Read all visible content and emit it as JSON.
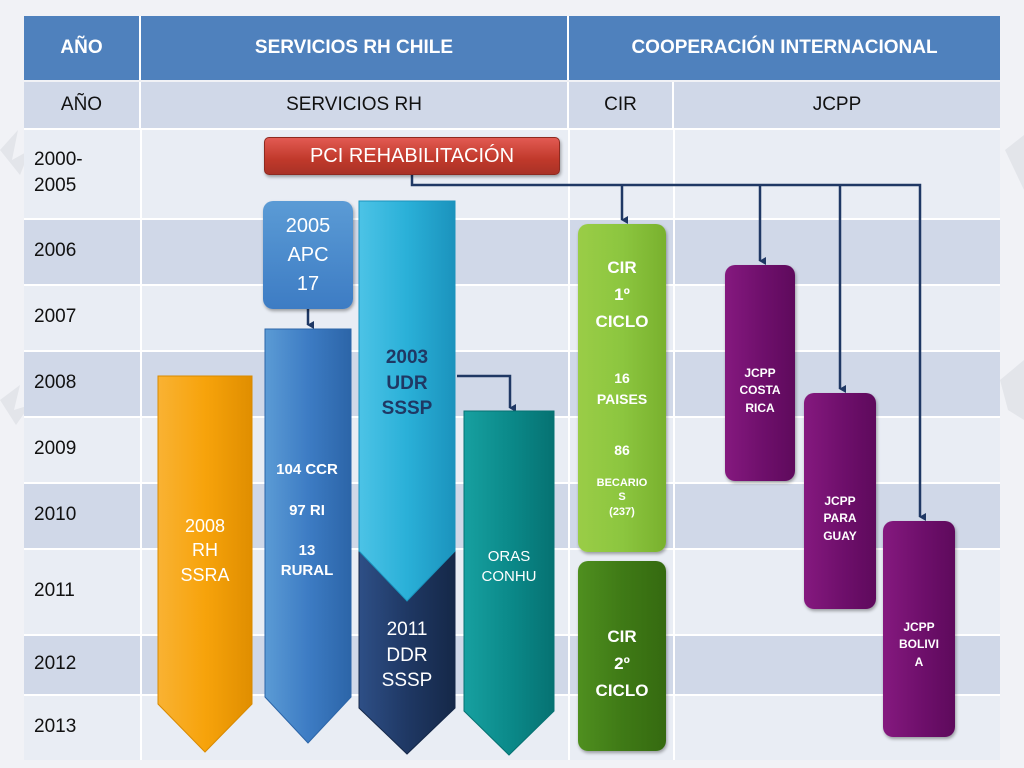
{
  "header": {
    "col_year": "AÑO",
    "col_servicios": "SERVICIOS RH CHILE",
    "col_cooperacion": "COOPERACIÓN INTERNACIONAL"
  },
  "subheader": {
    "col_year": "AÑO",
    "col_servicios": "SERVICIOS RH",
    "col_cir": "CIR",
    "col_jcpp": "JCPP"
  },
  "years": [
    "2000-\n2005",
    "2006",
    "2007",
    "2008",
    "2009",
    "2010",
    "2011",
    "2012",
    "2013"
  ],
  "programs": {
    "pci": "PCI REHABILITACIÓN",
    "apc": "2005\nAPC\n17",
    "rh_ssra": "2008\nRH\nSSRA",
    "ccr": "104 CCR\n\n97 RI\n\n13\nRURAL",
    "udr": "2003\nUDR\nSSSP",
    "ddr": "2011\nDDR\nSSSP",
    "oras": "ORAS\nCONHU",
    "cir1_title": "CIR\n1º\nCICLO",
    "cir1_paises": "16\nPAISES",
    "cir1_becarios_num": "86",
    "cir1_becarios": "BECARIO\nS\n(237)",
    "cir2": "CIR\n2º\nCICLO",
    "jcpp_costa_rica": "JCPP\nCOSTA\nRICA",
    "jcpp_paraguay": "JCPP\nPARA\nGUAY",
    "jcpp_bolivia": "JCPP\nBOLIVI\nA"
  },
  "colors": {
    "header_blue": "#4f81bd",
    "row_dark": "#d0d8e8",
    "row_light": "#e9edf4",
    "pci_red": "#c0392b",
    "orange": "#f7a30b",
    "blue": "#3d7cc4",
    "cyan": "#2ab0d8",
    "navy": "#1f3864",
    "teal": "#0b8a8a",
    "green_light": "#8cc63f",
    "green_dark": "#3f7a16",
    "purple": "#6e0f6b"
  }
}
